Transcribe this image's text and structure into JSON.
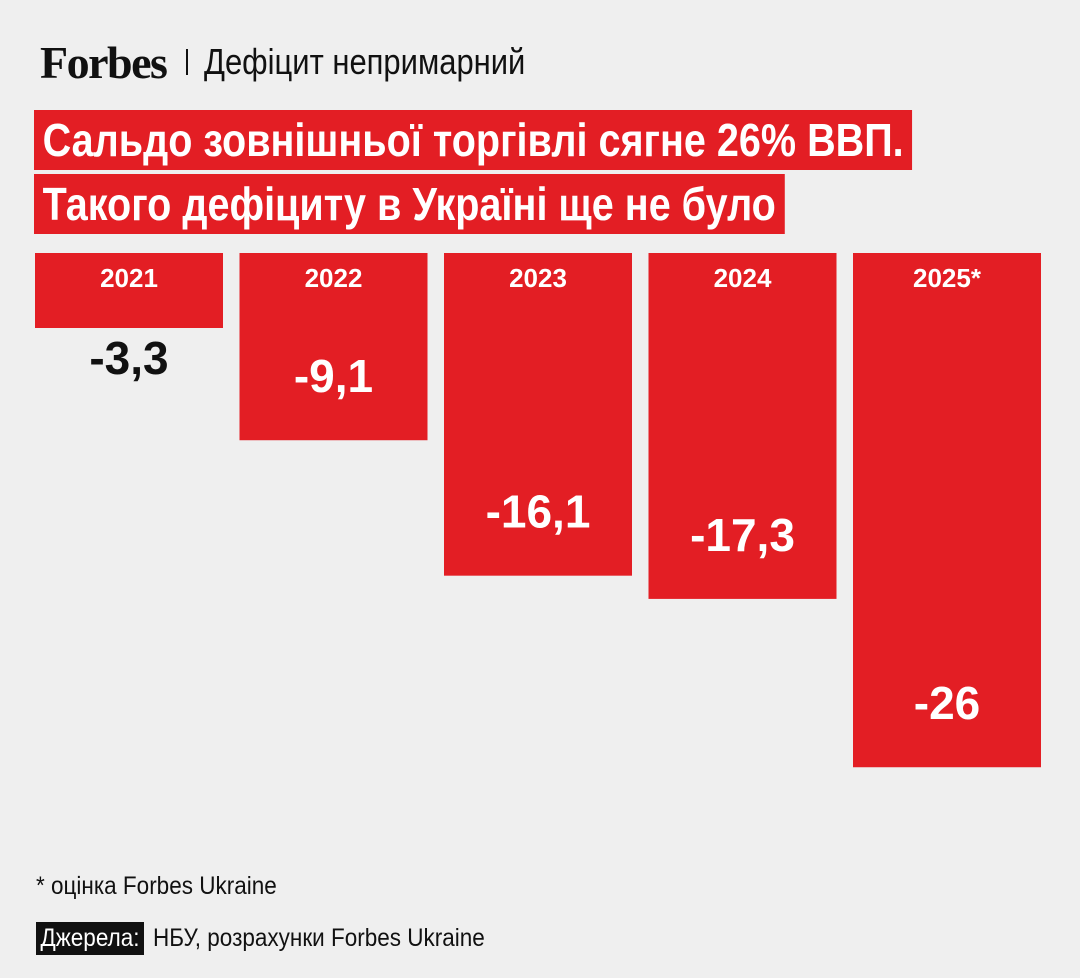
{
  "header": {
    "logo": "Forbes",
    "section": "Дефіцит непримарний"
  },
  "title": {
    "line1": "Сальдо зовнішньої торгівлі сягне 26% ВВП.",
    "line2": "Такого дефіциту в Україні ще не було"
  },
  "chart_data": {
    "type": "bar",
    "orientation": "vertical-down",
    "categories": [
      "2021",
      "2022",
      "2023",
      "2024",
      "2025*"
    ],
    "values": [
      -3.3,
      -9.1,
      -16.1,
      -17.3,
      -26
    ],
    "value_labels": [
      "-3,3",
      "-9,1",
      "-16,1",
      "-17,3",
      "-26"
    ],
    "title": "Сальдо зовнішньої торгівлі сягне 26% ВВП. Такого дефіциту в Україні ще не було",
    "ylim": [
      -26,
      0
    ],
    "bar_color": "#e31e24"
  },
  "footnote": "* оцінка Forbes Ukraine",
  "sources": {
    "label": "Джерела:",
    "text": "НБУ, розрахунки Forbes Ukraine"
  }
}
